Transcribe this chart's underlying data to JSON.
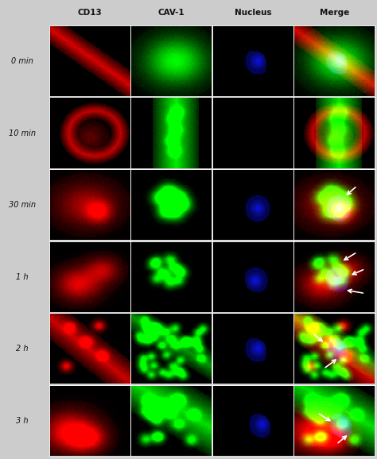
{
  "col_labels": [
    "CD13",
    "CAV-1",
    "Nucleus",
    "Merge"
  ],
  "row_labels": [
    "0 min",
    "10 min",
    "30 min",
    "1 h",
    "2 h",
    "3 h"
  ],
  "n_rows": 6,
  "n_cols": 4,
  "fig_bg": "#cccccc",
  "text_color": "#111111",
  "figsize": [
    4.74,
    5.78
  ],
  "dpi": 100
}
